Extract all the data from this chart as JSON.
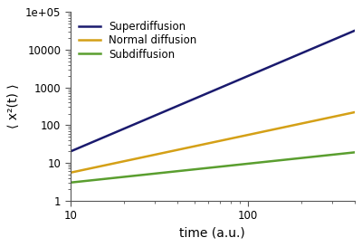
{
  "title": "",
  "xlabel": "time (a.u.)",
  "ylabel": "⟨ x²(t) ⟩",
  "xmin": 10,
  "xmax": 400,
  "ymin": 1,
  "ymax": 100000,
  "lines": [
    {
      "label": "Superdiffusion",
      "color": "#1a1a6e",
      "alpha_exp": 2.0,
      "coeff": 0.2
    },
    {
      "label": "Normal diffusion",
      "color": "#d4a017",
      "alpha_exp": 1.0,
      "coeff": 0.55
    },
    {
      "label": "Subdiffusion",
      "color": "#5a9e2f",
      "alpha_exp": 0.5,
      "coeff": 0.95
    }
  ],
  "background_color": "#ffffff",
  "plot_bg_color": "#ffffff",
  "linewidth": 1.8,
  "legend_fontsize": 8.5,
  "axis_label_fontsize": 10,
  "tick_fontsize": 8.5
}
